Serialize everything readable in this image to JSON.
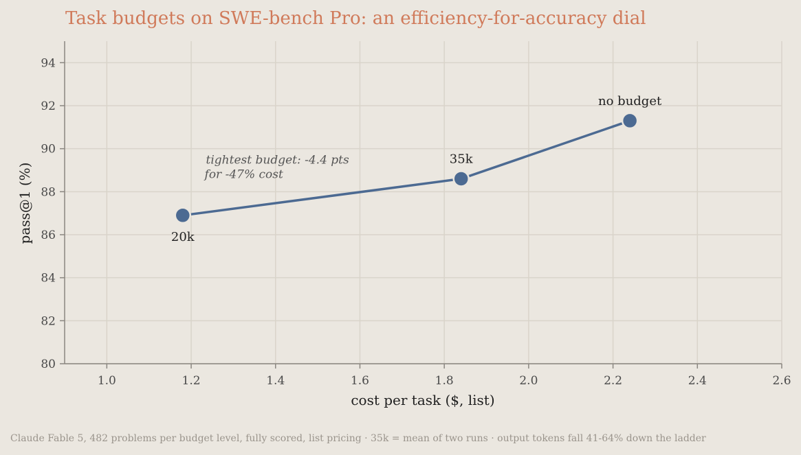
{
  "chart_data": {
    "type": "line",
    "title": "Task budgets on SWE-bench Pro: an efficiency-for-accuracy dial",
    "xlabel": "cost per task ($, list)",
    "ylabel": "pass@1 (%)",
    "xlim": [
      0.9,
      2.6
    ],
    "ylim": [
      80,
      95
    ],
    "xticks": [
      1.0,
      1.2,
      1.4,
      1.6,
      1.8,
      2.0,
      2.2,
      2.4,
      2.6
    ],
    "xtick_labels": [
      "1.0",
      "1.2",
      "1.4",
      "1.6",
      "1.8",
      "2.0",
      "2.2",
      "2.4",
      "2.6"
    ],
    "yticks": [
      80,
      82,
      84,
      86,
      88,
      90,
      92,
      94
    ],
    "ytick_labels": [
      "80",
      "82",
      "84",
      "86",
      "88",
      "90",
      "92",
      "94"
    ],
    "grid": true,
    "series_color": "#4c6a92",
    "title_color": "#d07a5a",
    "series": [
      {
        "points": [
          {
            "x": 1.18,
            "y": 86.9,
            "label": "20k",
            "label_pos": "below"
          },
          {
            "x": 1.84,
            "y": 88.6,
            "label": "35k",
            "label_pos": "above"
          },
          {
            "x": 2.24,
            "y": 91.3,
            "label": "no budget",
            "label_pos": "above"
          }
        ]
      }
    ],
    "annotation": {
      "lines": [
        "tightest budget: -4.4 pts",
        "for -47% cost"
      ],
      "x": 1.235,
      "y": 89.3
    }
  },
  "footnote": "Claude Fable 5, 482 problems per budget level, fully scored, list pricing · 35k = mean of two runs · output tokens fall 41-64% down the ladder"
}
